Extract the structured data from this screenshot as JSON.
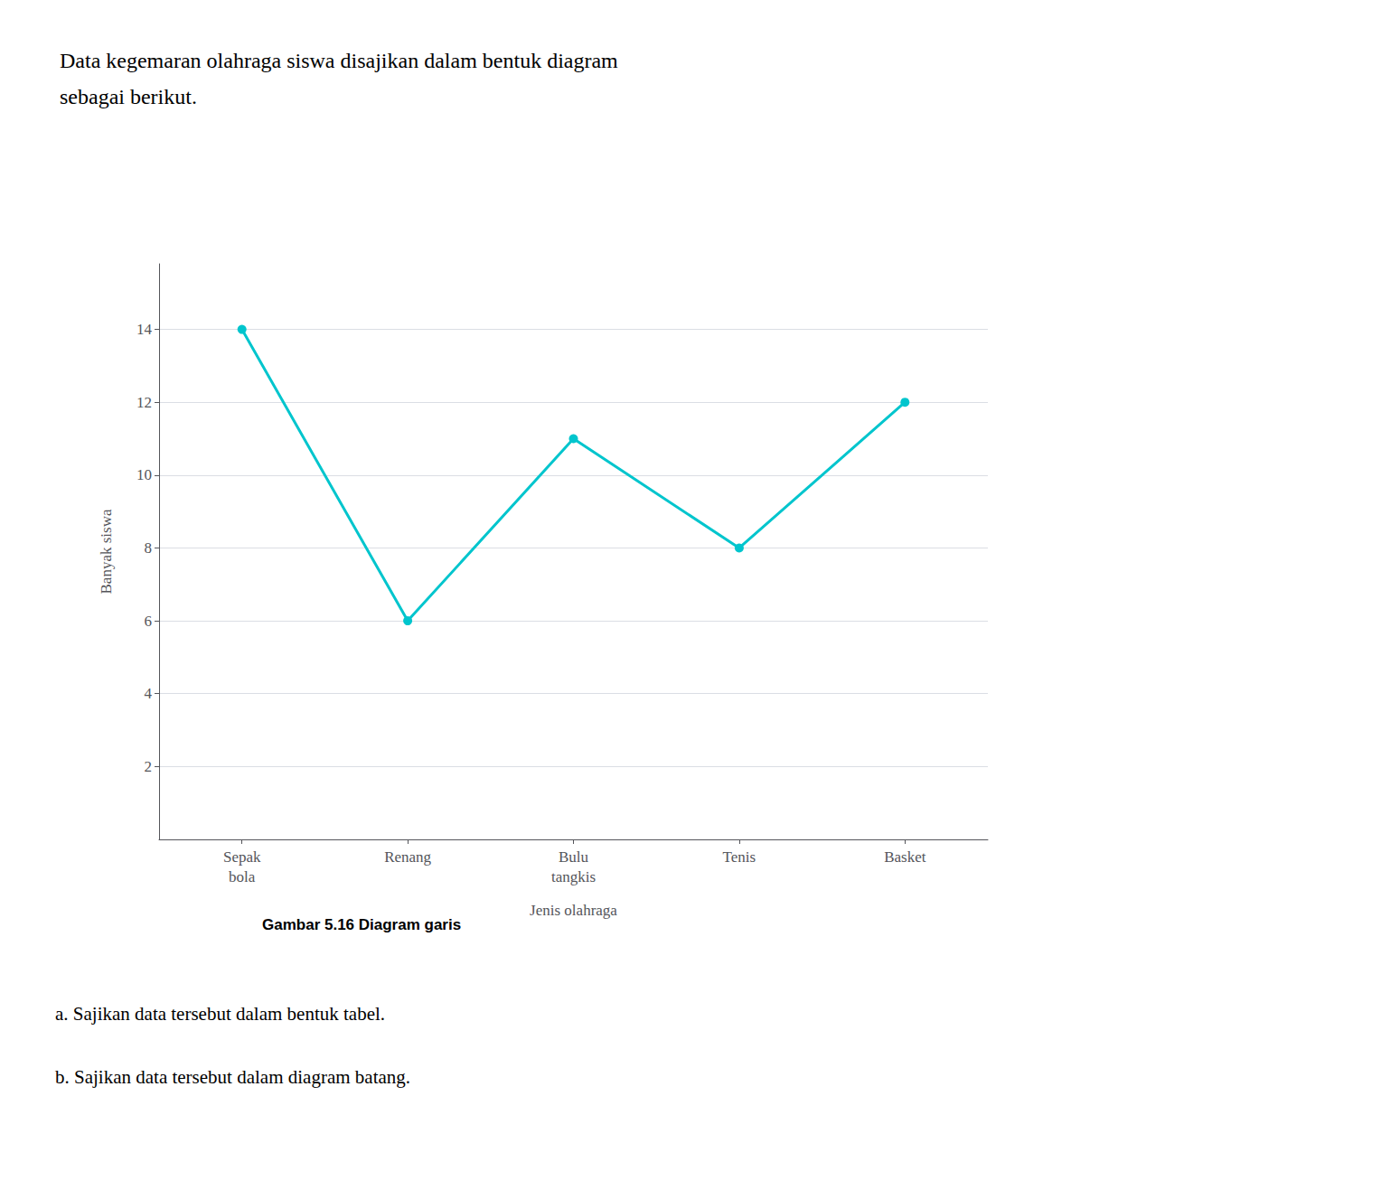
{
  "chart_data": {
    "type": "line",
    "title": "Data kegemaran olahraga siswa disajikan dalam bentuk diagram\nsebagai berikut.",
    "x_label": "Jenis olahraga",
    "y_label": "Banyak siswa",
    "categories": [
      "Sepak\nbola",
      "Renang",
      "Bulu\ntangkis",
      "Tenis",
      "Basket"
    ],
    "values": [
      14,
      6,
      11,
      8,
      12
    ],
    "color": "#00C5CD",
    "marker": "circle",
    "ylim": [
      0,
      15.8
    ],
    "yticks": [
      2,
      4,
      6,
      8,
      10,
      12,
      14
    ],
    "grid": true,
    "annotations": [
      "Gambar 5.16 Diagram garis",
      "a. Sajikan data tersebut dalam bentuk tabel.",
      "b. Sajikan data tersebut dalam diagram batang."
    ]
  }
}
